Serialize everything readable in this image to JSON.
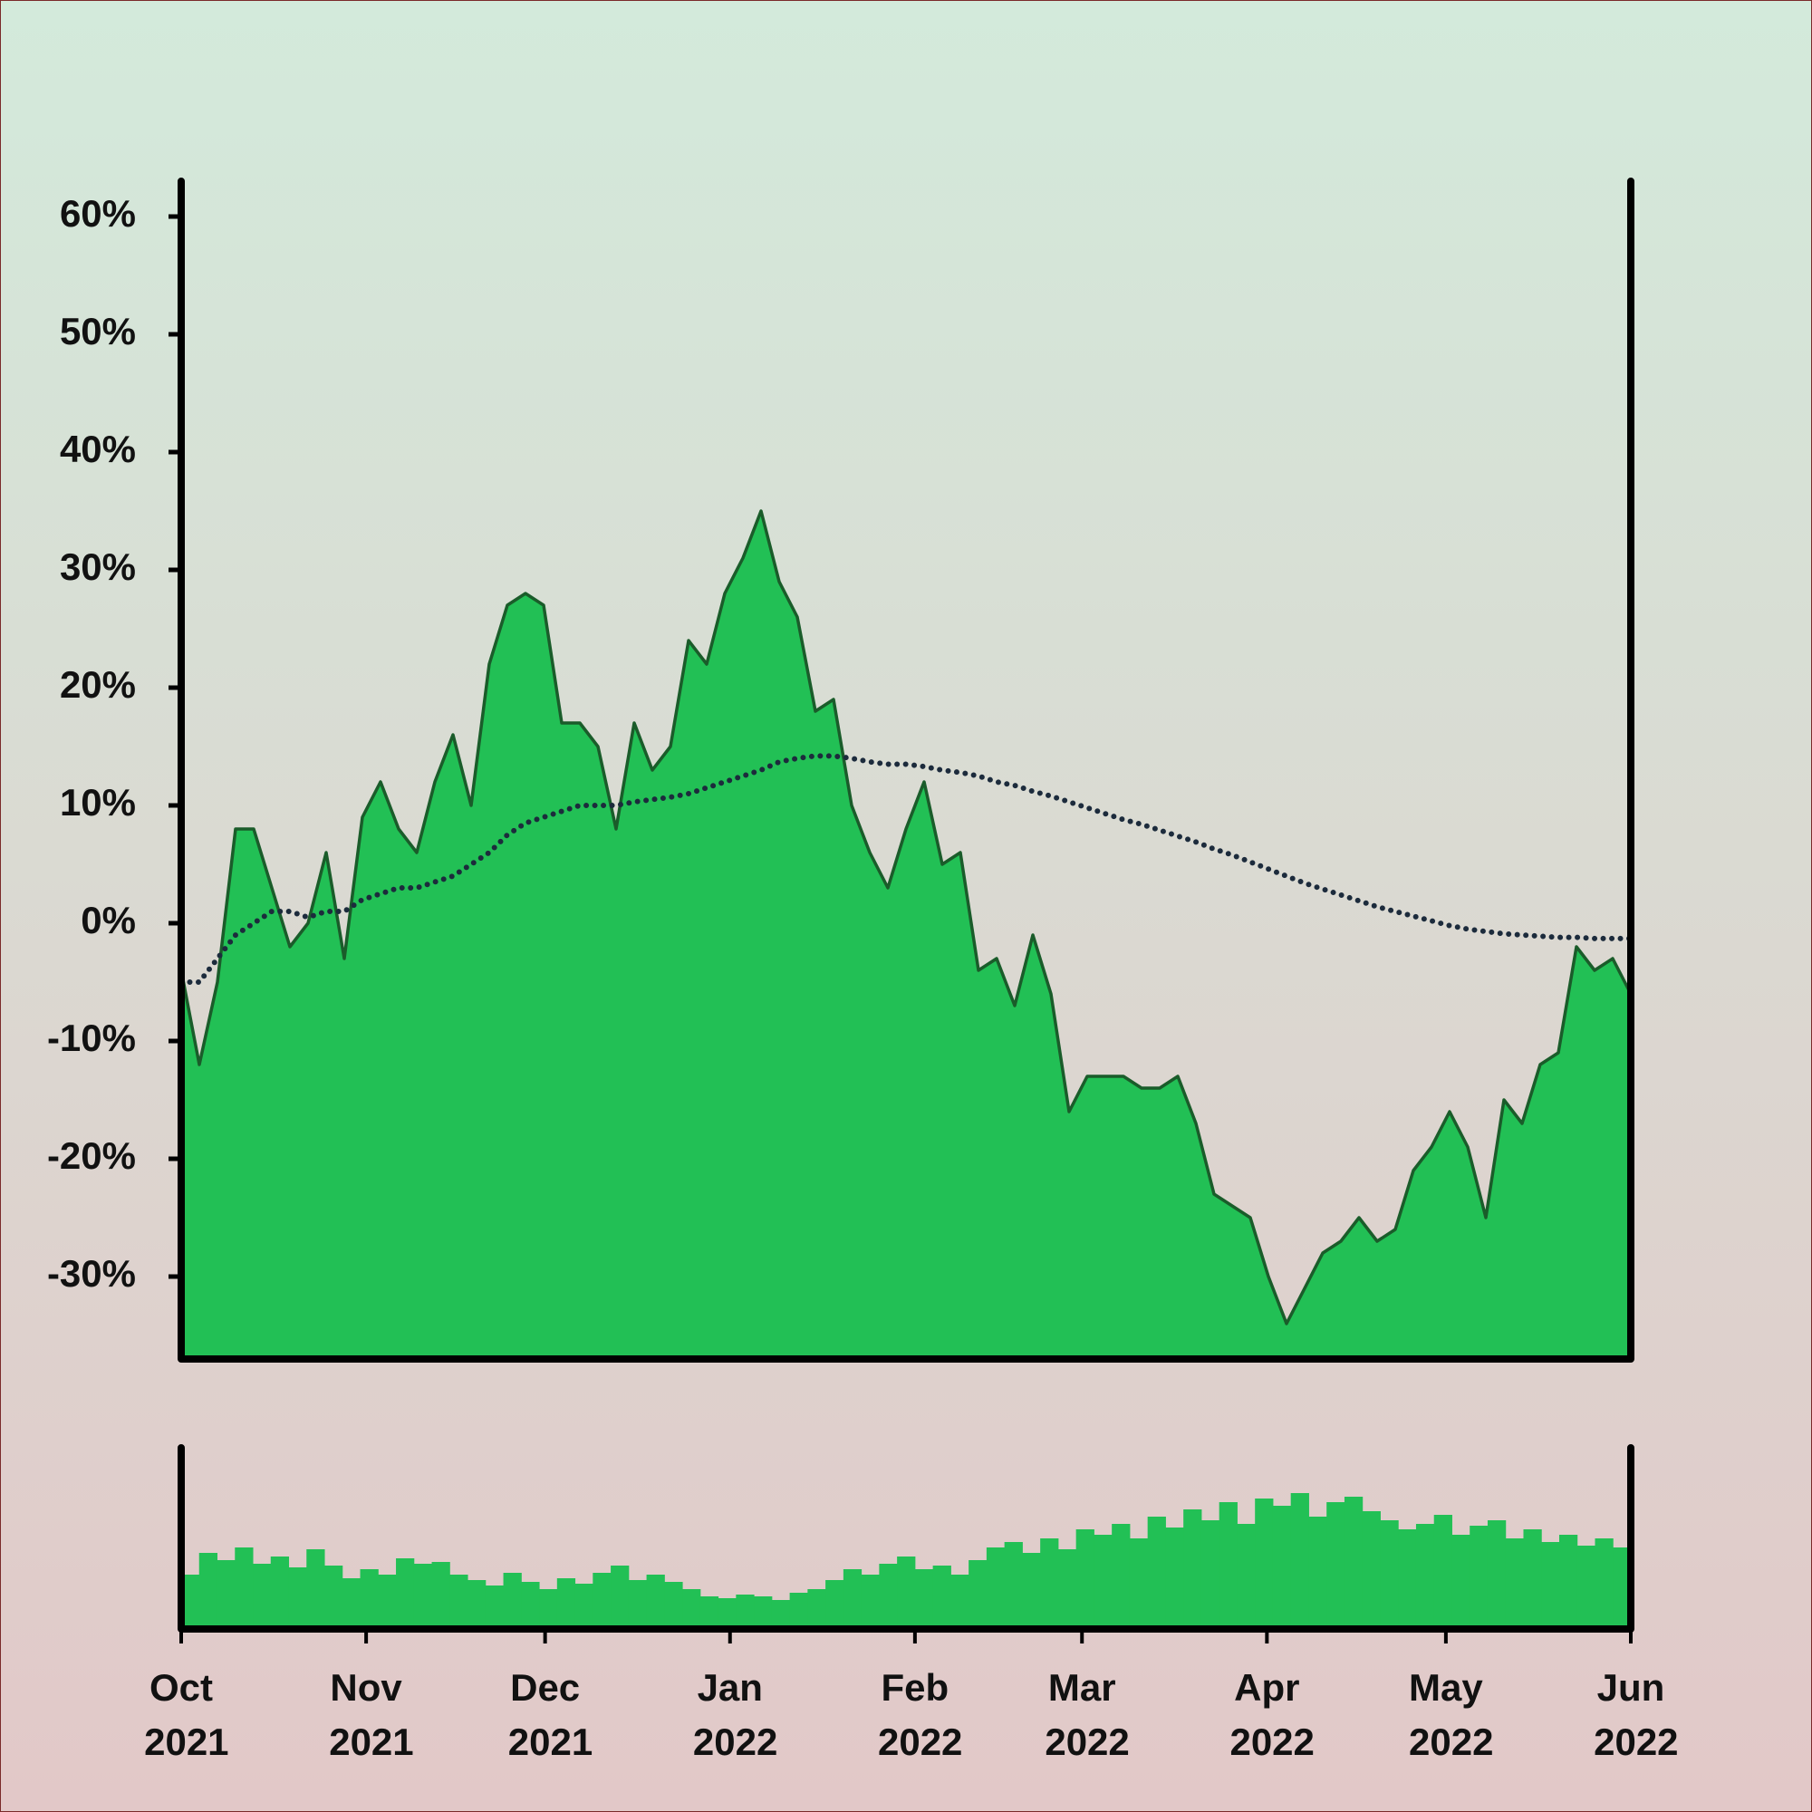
{
  "chart_data": [
    {
      "type": "area",
      "xlim": [
        "2021-10",
        "2022-06"
      ],
      "ylim": [
        -37,
        63
      ],
      "yticks": [
        {
          "value": -30,
          "label": "-30%"
        },
        {
          "value": -20,
          "label": "-20%"
        },
        {
          "value": -10,
          "label": "-10%"
        },
        {
          "value": 0,
          "label": "0%"
        },
        {
          "value": 10,
          "label": "10%"
        },
        {
          "value": 20,
          "label": "20%"
        },
        {
          "value": 30,
          "label": "30%"
        },
        {
          "value": 40,
          "label": "40%"
        },
        {
          "value": 50,
          "label": "50%"
        },
        {
          "value": 60,
          "label": "60%"
        }
      ],
      "series": [
        {
          "type": "area",
          "color": "#22c055",
          "line_color": "#1a5c2a",
          "values": [
            -4,
            -12,
            -5,
            8,
            8,
            3,
            -2,
            0,
            6,
            -3,
            9,
            12,
            8,
            6,
            12,
            16,
            10,
            22,
            27,
            28,
            27,
            17,
            17,
            15,
            8,
            17,
            13,
            15,
            24,
            22,
            28,
            31,
            35,
            29,
            26,
            18,
            19,
            10,
            6,
            3,
            8,
            12,
            5,
            6,
            -4,
            -3,
            -7,
            -1,
            -6,
            -16,
            -13,
            -13,
            -13,
            -14,
            -14,
            -13,
            -17,
            -23,
            -24,
            -25,
            -30,
            -34,
            -31,
            -28,
            -27,
            -25,
            -27,
            -26,
            -21,
            -19,
            -16,
            -19,
            -25,
            -15,
            -17,
            -12,
            -11,
            -2,
            -4,
            -3,
            -6
          ]
        },
        {
          "type": "line",
          "style": "dotted",
          "color": "#1c2b3c",
          "values": [
            -5,
            -5,
            -3,
            -1,
            0,
            1,
            1,
            0.5,
            1,
            1,
            2,
            2.5,
            3,
            3,
            3.5,
            4,
            5,
            6,
            7.5,
            8.5,
            9,
            9.5,
            10,
            10,
            10,
            10.3,
            10.5,
            10.7,
            11,
            11.5,
            12,
            12.5,
            13,
            13.7,
            14,
            14.2,
            14.2,
            14,
            13.7,
            13.5,
            13.5,
            13.3,
            13,
            12.8,
            12.5,
            12,
            11.7,
            11.2,
            10.8,
            10.3,
            9.8,
            9.3,
            8.8,
            8.4,
            7.9,
            7.4,
            6.9,
            6.3,
            5.8,
            5.2,
            4.6,
            4,
            3.4,
            2.9,
            2.4,
            1.9,
            1.4,
            1,
            0.6,
            0.2,
            -0.2,
            -0.5,
            -0.7,
            -0.9,
            -1,
            -1.1,
            -1.2,
            -1.2,
            -1.3,
            -1.3,
            -1.3
          ]
        }
      ]
    },
    {
      "type": "bar",
      "xlim": [
        "2021-10",
        "2022-06"
      ],
      "ylim": [
        0,
        100
      ],
      "color": "#22c055",
      "values": [
        30,
        42,
        38,
        45,
        36,
        40,
        34,
        44,
        35,
        28,
        33,
        30,
        39,
        36,
        37,
        30,
        27,
        24,
        31,
        26,
        22,
        28,
        25,
        31,
        35,
        27,
        30,
        26,
        22,
        18,
        17,
        19,
        18,
        16,
        20,
        22,
        27,
        33,
        30,
        36,
        40,
        33,
        35,
        30,
        38,
        45,
        48,
        42,
        50,
        44,
        55,
        52,
        58,
        50,
        62,
        56,
        66,
        60,
        70,
        58,
        72,
        68,
        75,
        62,
        70,
        73,
        65,
        60,
        55,
        58,
        63,
        52,
        57,
        60,
        50,
        55,
        48,
        52,
        46,
        50,
        45
      ],
      "xticks": [
        {
          "value": "2021-10",
          "label": "Oct 2021"
        },
        {
          "value": "2021-11",
          "label": "Nov 2021"
        },
        {
          "value": "2021-12",
          "label": "Dec 2021"
        },
        {
          "value": "2022-01",
          "label": "Jan 2022"
        },
        {
          "value": "2022-02",
          "label": "Feb 2022"
        },
        {
          "value": "2022-03",
          "label": "Mar 2022"
        },
        {
          "value": "2022-04",
          "label": "Apr 2022"
        },
        {
          "value": "2022-05",
          "label": "May 2022"
        },
        {
          "value": "2022-06",
          "label": "Jun 2022"
        }
      ]
    }
  ]
}
